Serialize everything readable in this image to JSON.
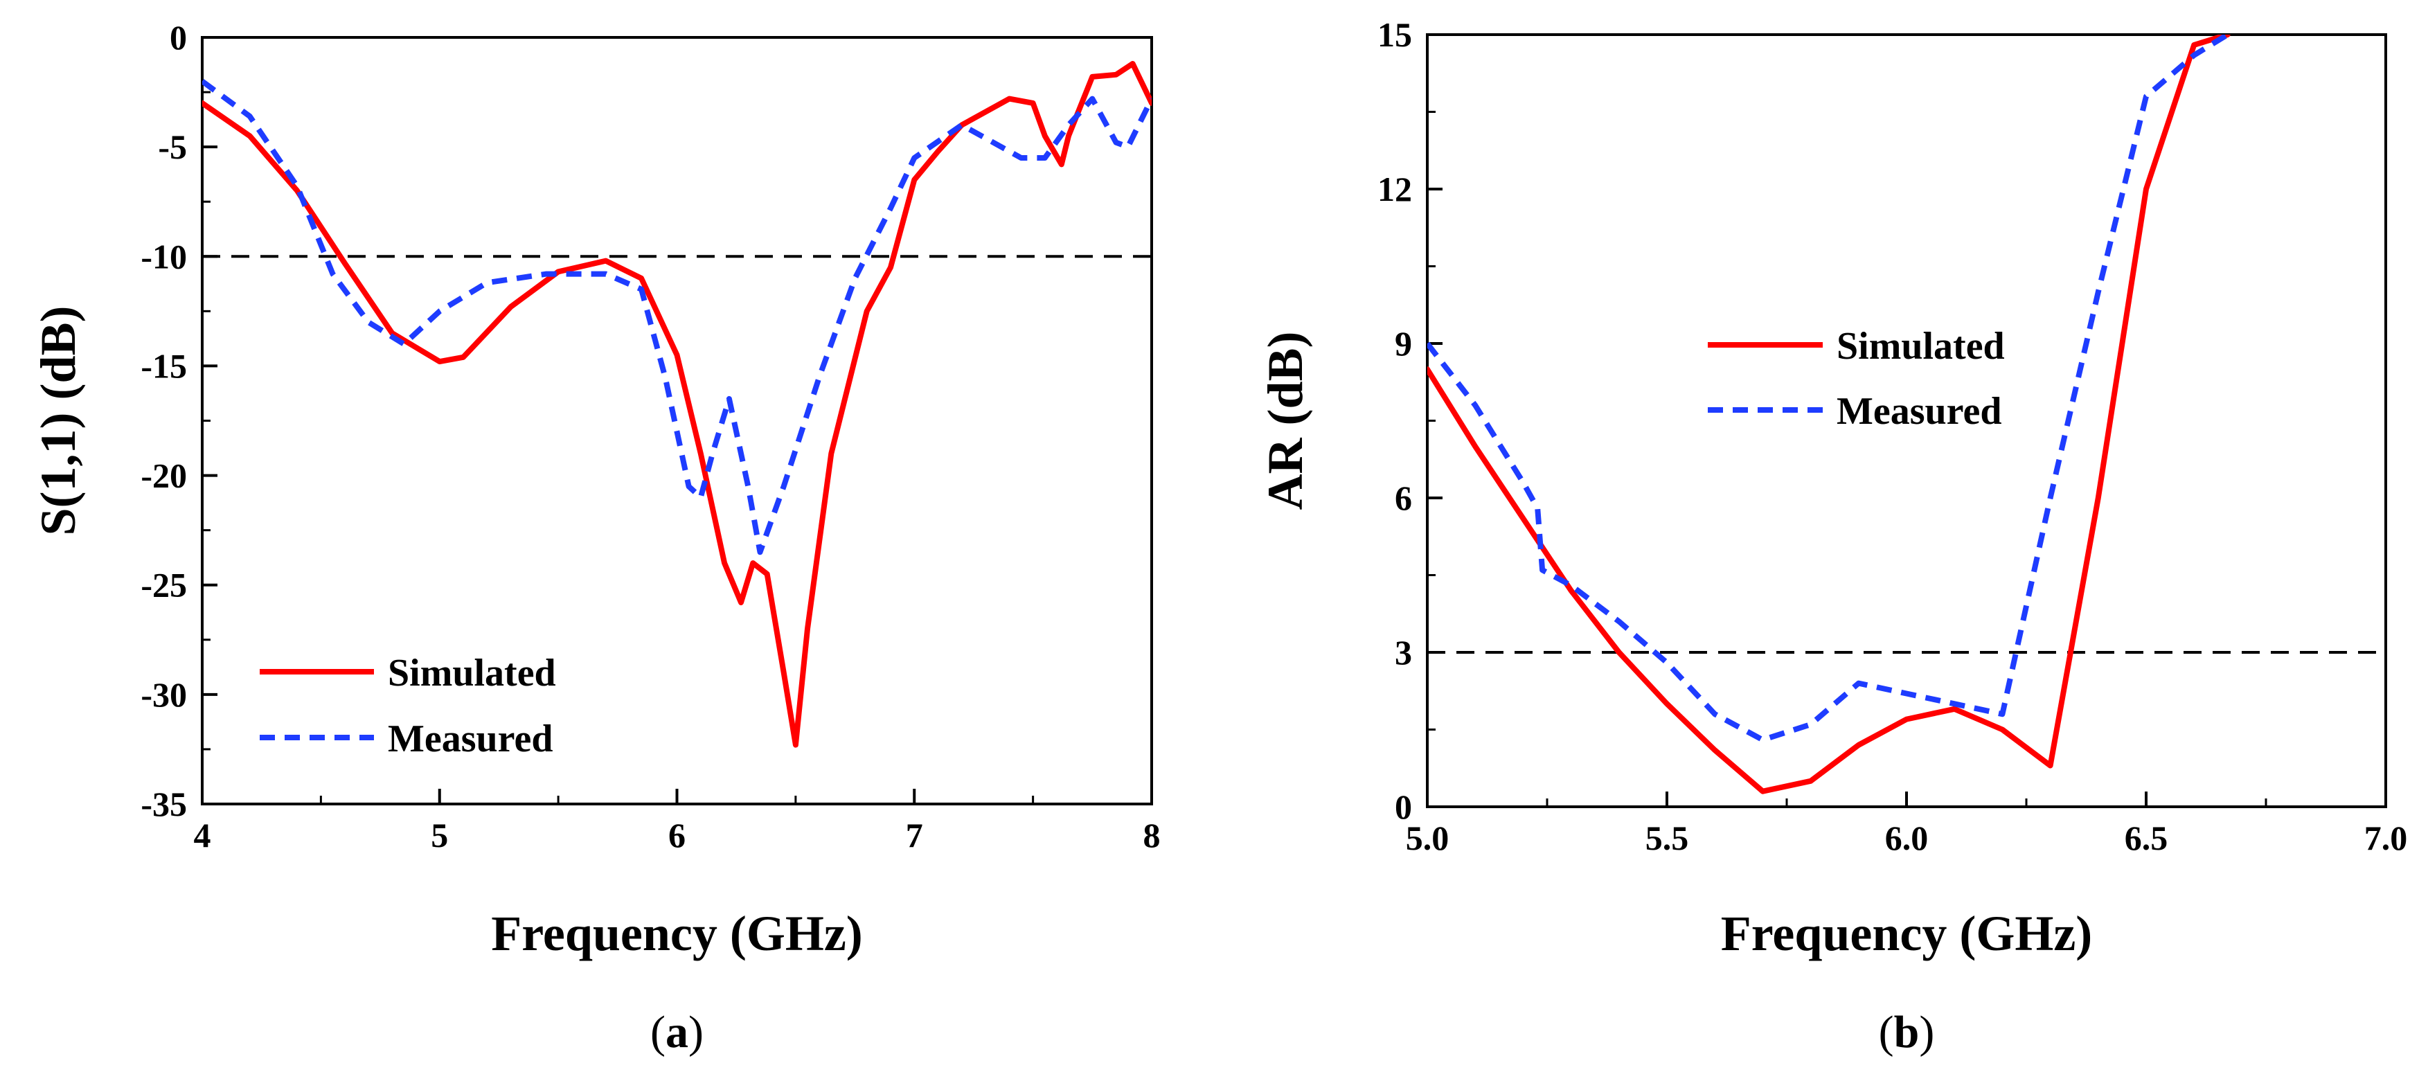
{
  "chart_data": [
    {
      "type": "line",
      "caption": "a",
      "title": "",
      "xlabel": "Frequency (GHz)",
      "ylabel": "S(1,1) (dB)",
      "xlim": [
        4,
        8
      ],
      "ylim": [
        -35,
        0
      ],
      "xticks": [
        4,
        5,
        6,
        7,
        8
      ],
      "xtick_labels": [
        "4",
        "5",
        "6",
        "7",
        "8"
      ],
      "yticks": [
        0,
        -5,
        -10,
        -15,
        -20,
        -25,
        -30,
        -35
      ],
      "ytick_labels": [
        "0",
        "-5",
        "-10",
        "-15",
        "-20",
        "-25",
        "-30",
        "-35"
      ],
      "reference_line": -10,
      "legend_position": "bottom-left",
      "series": [
        {
          "name": "Simulated",
          "color": "#ff0000",
          "style": "solid",
          "x": [
            4.0,
            4.2,
            4.4,
            4.6,
            4.8,
            5.0,
            5.1,
            5.3,
            5.5,
            5.7,
            5.85,
            6.0,
            6.1,
            6.2,
            6.27,
            6.32,
            6.38,
            6.45,
            6.5,
            6.55,
            6.65,
            6.8,
            6.9,
            7.0,
            7.1,
            7.2,
            7.4,
            7.5,
            7.55,
            7.62,
            7.65,
            7.75,
            7.85,
            7.92,
            8.0
          ],
          "values": [
            -3.0,
            -4.5,
            -7.0,
            -10.3,
            -13.5,
            -14.8,
            -14.6,
            -12.3,
            -10.7,
            -10.2,
            -11.0,
            -14.5,
            -19.0,
            -24.0,
            -25.8,
            -24.0,
            -24.5,
            -29.0,
            -32.3,
            -27.0,
            -19.0,
            -12.5,
            -10.5,
            -6.5,
            -5.2,
            -4.0,
            -2.8,
            -3.0,
            -4.5,
            -5.8,
            -4.5,
            -1.8,
            -1.7,
            -1.2,
            -3.0
          ]
        },
        {
          "name": "Measured",
          "color": "#1e3cff",
          "style": "dashed",
          "x": [
            4.0,
            4.2,
            4.4,
            4.55,
            4.7,
            4.85,
            5.0,
            5.2,
            5.45,
            5.7,
            5.85,
            5.95,
            6.05,
            6.1,
            6.15,
            6.22,
            6.3,
            6.35,
            6.45,
            6.6,
            6.75,
            6.9,
            7.0,
            7.2,
            7.45,
            7.55,
            7.65,
            7.75,
            7.85,
            7.9,
            8.0
          ],
          "values": [
            -2.0,
            -3.6,
            -6.8,
            -10.8,
            -13.0,
            -14.0,
            -12.5,
            -11.2,
            -10.8,
            -10.8,
            -11.5,
            -15.5,
            -20.5,
            -21.0,
            -19.0,
            -16.5,
            -20.5,
            -23.5,
            -20.5,
            -15.5,
            -11.0,
            -7.8,
            -5.5,
            -4.0,
            -5.5,
            -5.5,
            -4.0,
            -2.8,
            -4.8,
            -5.0,
            -2.8
          ]
        }
      ]
    },
    {
      "type": "line",
      "caption": "b",
      "title": "",
      "xlabel": "Frequency (GHz)",
      "ylabel": "AR (dB)",
      "xlim": [
        5.0,
        7.0
      ],
      "ylim": [
        0,
        15
      ],
      "xticks": [
        5.0,
        5.5,
        6.0,
        6.5,
        7.0
      ],
      "xtick_labels": [
        "5.0",
        "5.5",
        "6.0",
        "6.5",
        "7.0"
      ],
      "yticks": [
        0,
        3,
        6,
        9,
        12,
        15
      ],
      "ytick_labels": [
        "0",
        "3",
        "6",
        "9",
        "12",
        "15"
      ],
      "reference_line": 3,
      "legend_position": "upper-left",
      "series": [
        {
          "name": "Simulated",
          "color": "#ff0000",
          "style": "solid",
          "x": [
            5.0,
            5.1,
            5.2,
            5.3,
            5.4,
            5.5,
            5.6,
            5.7,
            5.8,
            5.9,
            6.0,
            6.1,
            6.2,
            6.3,
            6.4,
            6.5,
            6.6,
            6.67
          ],
          "values": [
            8.5,
            7.0,
            5.6,
            4.2,
            3.0,
            2.0,
            1.1,
            0.3,
            0.5,
            1.2,
            1.7,
            1.9,
            1.5,
            0.8,
            6.0,
            12.0,
            14.8,
            15.0
          ]
        },
        {
          "name": "Measured",
          "color": "#1e3cff",
          "style": "dashed",
          "x": [
            5.0,
            5.1,
            5.2,
            5.23,
            5.24,
            5.3,
            5.4,
            5.5,
            5.6,
            5.7,
            5.8,
            5.9,
            6.0,
            6.1,
            6.2,
            6.3,
            6.4,
            6.5,
            6.6,
            6.67
          ],
          "values": [
            9.0,
            7.8,
            6.3,
            5.8,
            4.6,
            4.3,
            3.6,
            2.8,
            1.8,
            1.3,
            1.6,
            2.4,
            2.2,
            2.0,
            1.8,
            6.0,
            10.0,
            13.8,
            14.6,
            15.0
          ]
        }
      ]
    }
  ]
}
